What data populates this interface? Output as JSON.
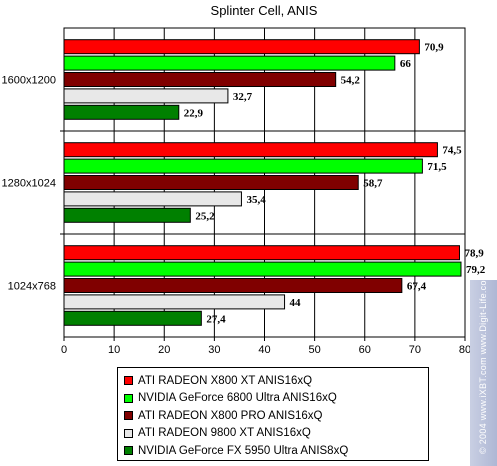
{
  "chart_data": {
    "type": "bar",
    "orientation": "horizontal",
    "title": "Splinter Cell, ANIS",
    "categories": [
      "1600x1200",
      "1280x1024",
      "1024x768"
    ],
    "xlim": [
      0,
      80
    ],
    "xticks": [
      0,
      10,
      20,
      30,
      40,
      50,
      60,
      70,
      80
    ],
    "grid": true,
    "legend_position": "bottom",
    "series": [
      {
        "name": "ATI RADEON X800 XT ANIS16xQ",
        "color": "#ff0000",
        "values": [
          70.9,
          74.5,
          78.9
        ],
        "labels": [
          "70,9",
          "74,5",
          "78,9"
        ]
      },
      {
        "name": "NVIDIA GeForce 6800 Ultra ANIS16xQ",
        "color": "#00ff00",
        "values": [
          66,
          71.5,
          79.2
        ],
        "labels": [
          "66",
          "71,5",
          "79,2"
        ]
      },
      {
        "name": "ATI RADEON X800 PRO ANIS16xQ",
        "color": "#800000",
        "values": [
          54.2,
          58.7,
          67.4
        ],
        "labels": [
          "54,2",
          "58,7",
          "67,4"
        ]
      },
      {
        "name": "ATI RADEON 9800 XT ANIS16xQ",
        "color": "#e8e8e8",
        "values": [
          32.7,
          35.4,
          44
        ],
        "labels": [
          "32,7",
          "35,4",
          "44"
        ]
      },
      {
        "name": "NVIDIA GeForce FX 5950 Ultra ANIS8xQ",
        "color": "#008000",
        "values": [
          22.9,
          25.2,
          27.4
        ],
        "labels": [
          "22,9",
          "25,2",
          "27,4"
        ]
      }
    ]
  },
  "watermark": {
    "text": "© 2004 www.iXBT.com  www.Digit-Life.com"
  }
}
